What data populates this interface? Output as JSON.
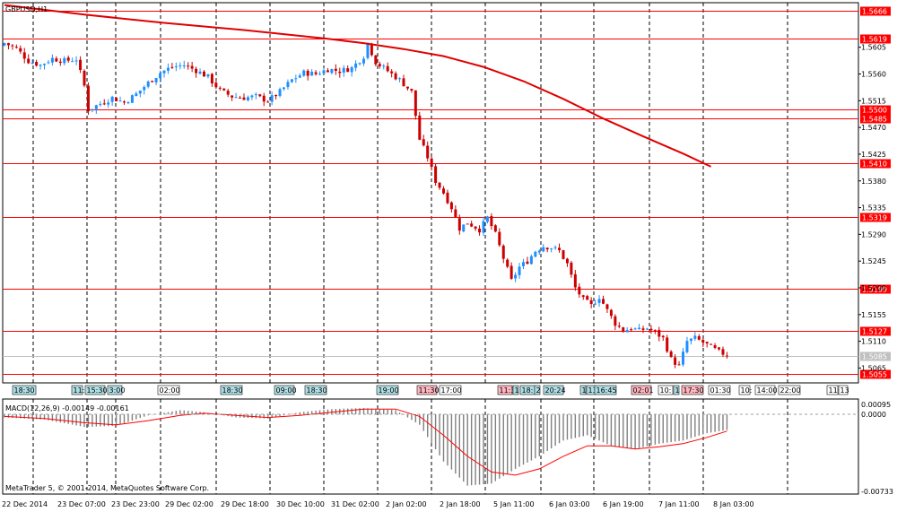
{
  "symbol_label": "GBPUSD,H1",
  "indicator_label": "MACD(12,26,9) -0.00149 -0.00161",
  "copyright": "MetaTrader 5, © 2001-2014, MetaQuotes Software Corp.",
  "colors": {
    "background": "#ffffff",
    "frame": "#000000",
    "bull": "#1e90ff",
    "bear": "#cc0000",
    "level_line": "#ff0000",
    "ma_line": "#e00000",
    "histogram": "#808080",
    "signal": "#ff0000",
    "current_price": "#c0c0c0",
    "event_tag_fill": "#b0e0e6",
    "event_tag_red": "#ffb6c1"
  },
  "chart_data": [
    {
      "type": "candlestick",
      "title": "GBPUSD,H1",
      "ylim": [
        1.504,
        1.568
      ],
      "y_ticks": [
        "1.5605",
        "1.5560",
        "1.5515",
        "1.5470",
        "1.5425",
        "1.5380",
        "1.5335",
        "1.5290",
        "1.5245",
        "1.5200",
        "1.5155",
        "1.5110",
        "1.5065"
      ],
      "x_tick_labels": [
        "22 Dec 2014",
        "23 Dec 07:00",
        "23 Dec 23:00",
        "29 Dec 02:00",
        "29 Dec 18:00",
        "30 Dec 10:00",
        "31 Dec 02:00",
        "2 Jan 02:00",
        "2 Jan 18:00",
        "5 Jan 11:00",
        "6 Jan 03:00",
        "6 Jan 19:00",
        "7 Jan 11:00",
        "8 Jan 03:00"
      ],
      "horizontal_levels": [
        {
          "label": "1.5666",
          "value": 1.5666
        },
        {
          "label": "1.5619",
          "value": 1.5619
        },
        {
          "label": "1.5500",
          "value": 1.55
        },
        {
          "label": "1.5485",
          "value": 1.5485
        },
        {
          "label": "1.5410",
          "value": 1.541
        },
        {
          "label": "1.5319",
          "value": 1.5319
        },
        {
          "label": "1.5199",
          "value": 1.5199
        },
        {
          "label": "1.5127",
          "value": 1.5127
        },
        {
          "label": "1.5055",
          "value": 1.5055
        }
      ],
      "current_price": {
        "label": "1.5085",
        "value": 1.5085
      },
      "moving_average": [
        [
          0,
          1.5676
        ],
        [
          20,
          1.566
        ],
        [
          40,
          1.5646
        ],
        [
          60,
          1.5634
        ],
        [
          80,
          1.562
        ],
        [
          90,
          1.5612
        ],
        [
          100,
          1.5602
        ],
        [
          110,
          1.559
        ],
        [
          120,
          1.5572
        ],
        [
          130,
          1.5548
        ],
        [
          140,
          1.5518
        ],
        [
          150,
          1.5485
        ],
        [
          160,
          1.5455
        ],
        [
          170,
          1.5426
        ],
        [
          177,
          1.5404
        ]
      ],
      "close_path": [
        [
          0,
          1.5612
        ],
        [
          3,
          1.5603
        ],
        [
          6,
          1.5582
        ],
        [
          9,
          1.5575
        ],
        [
          12,
          1.5586
        ],
        [
          15,
          1.5582
        ],
        [
          18,
          1.5585
        ],
        [
          20,
          1.554
        ],
        [
          21,
          1.55
        ],
        [
          24,
          1.551
        ],
        [
          27,
          1.552
        ],
        [
          30,
          1.5512
        ],
        [
          33,
          1.5526
        ],
        [
          36,
          1.5545
        ],
        [
          39,
          1.5562
        ],
        [
          42,
          1.5572
        ],
        [
          45,
          1.5575
        ],
        [
          48,
          1.5566
        ],
        [
          51,
          1.5555
        ],
        [
          54,
          1.5532
        ],
        [
          57,
          1.5522
        ],
        [
          60,
          1.552
        ],
        [
          63,
          1.5522
        ],
        [
          66,
          1.5515
        ],
        [
          69,
          1.553
        ],
        [
          72,
          1.555
        ],
        [
          75,
          1.5562
        ],
        [
          78,
          1.556
        ],
        [
          81,
          1.5568
        ],
        [
          84,
          1.5565
        ],
        [
          87,
          1.557
        ],
        [
          90,
          1.559
        ],
        [
          91,
          1.5612
        ],
        [
          93,
          1.558
        ],
        [
          96,
          1.5565
        ],
        [
          99,
          1.555
        ],
        [
          102,
          1.553
        ],
        [
          104,
          1.545
        ],
        [
          106,
          1.542
        ],
        [
          108,
          1.538
        ],
        [
          110,
          1.536
        ],
        [
          112,
          1.5335
        ],
        [
          114,
          1.53
        ],
        [
          116,
          1.531
        ],
        [
          119,
          1.5298
        ],
        [
          121,
          1.5318
        ],
        [
          123,
          1.529
        ],
        [
          125,
          1.525
        ],
        [
          127,
          1.5212
        ],
        [
          129,
          1.5235
        ],
        [
          131,
          1.5245
        ],
        [
          133,
          1.5262
        ],
        [
          135,
          1.527
        ],
        [
          137,
          1.5268
        ],
        [
          139,
          1.5262
        ],
        [
          141,
          1.524
        ],
        [
          143,
          1.52
        ],
        [
          145,
          1.518
        ],
        [
          147,
          1.517
        ],
        [
          149,
          1.5185
        ],
        [
          151,
          1.5162
        ],
        [
          153,
          1.514
        ],
        [
          155,
          1.5128
        ],
        [
          157,
          1.5132
        ],
        [
          159,
          1.5128
        ],
        [
          161,
          1.5132
        ],
        [
          163,
          1.5125
        ],
        [
          165,
          1.5115
        ],
        [
          167,
          1.508
        ],
        [
          169,
          1.5068
        ],
        [
          171,
          1.511
        ],
        [
          173,
          1.5115
        ],
        [
          175,
          1.5108
        ],
        [
          177,
          1.51
        ],
        [
          179,
          1.5092
        ],
        [
          181,
          1.5087
        ]
      ]
    },
    {
      "type": "bar",
      "title": "MACD(12,26,9) -0.00149 -0.00161",
      "ylim": [
        -0.0076,
        0.0012
      ],
      "y_ticks": [
        "0.00095",
        "0.0000",
        "-0.00733"
      ],
      "histogram": [
        [
          0,
          -0.0003
        ],
        [
          10,
          -0.0005
        ],
        [
          20,
          -0.0012
        ],
        [
          28,
          -0.0011
        ],
        [
          36,
          -0.0001
        ],
        [
          44,
          0.0004
        ],
        [
          50,
          0.0002
        ],
        [
          58,
          -0.0003
        ],
        [
          66,
          -0.0004
        ],
        [
          74,
          0.0002
        ],
        [
          82,
          0.0005
        ],
        [
          90,
          0.0006
        ],
        [
          98,
          0.0004
        ],
        [
          104,
          -0.001
        ],
        [
          110,
          -0.0045
        ],
        [
          116,
          -0.0068
        ],
        [
          122,
          -0.0066
        ],
        [
          128,
          -0.0052
        ],
        [
          134,
          -0.004
        ],
        [
          140,
          -0.0025
        ],
        [
          146,
          -0.002
        ],
        [
          152,
          -0.003
        ],
        [
          158,
          -0.0033
        ],
        [
          164,
          -0.0028
        ],
        [
          170,
          -0.0025
        ],
        [
          176,
          -0.0018
        ],
        [
          181,
          -0.0015
        ]
      ],
      "signal": [
        [
          0,
          -0.0002
        ],
        [
          10,
          -0.0004
        ],
        [
          20,
          -0.0008
        ],
        [
          28,
          -0.001
        ],
        [
          36,
          -0.0006
        ],
        [
          44,
          -0.0001
        ],
        [
          50,
          0.0001
        ],
        [
          58,
          -0.0001
        ],
        [
          66,
          -0.0003
        ],
        [
          74,
          -0.0001
        ],
        [
          82,
          0.0002
        ],
        [
          90,
          0.0005
        ],
        [
          98,
          0.0005
        ],
        [
          104,
          -0.0002
        ],
        [
          110,
          -0.002
        ],
        [
          116,
          -0.004
        ],
        [
          122,
          -0.0055
        ],
        [
          128,
          -0.0058
        ],
        [
          134,
          -0.0052
        ],
        [
          140,
          -0.004
        ],
        [
          146,
          -0.003
        ],
        [
          152,
          -0.003
        ],
        [
          158,
          -0.0033
        ],
        [
          164,
          -0.0031
        ],
        [
          170,
          -0.0028
        ],
        [
          176,
          -0.0022
        ],
        [
          181,
          -0.0016
        ]
      ]
    }
  ],
  "event_tags": [
    {
      "label": "18:30",
      "style": "blue"
    },
    {
      "label": "11:",
      "style": "blue"
    },
    {
      "label": "15:30",
      "style": "blue"
    },
    {
      "label": "3:00",
      "style": "blue"
    },
    {
      "label": "02:00",
      "style": "plain"
    },
    {
      "label": "18:30",
      "style": "blue"
    },
    {
      "label": "09:00",
      "style": "blue"
    },
    {
      "label": "18:30",
      "style": "blue"
    },
    {
      "label": "19:00",
      "style": "blue"
    },
    {
      "label": "11:30",
      "style": "red"
    },
    {
      "label": "17:00",
      "style": "plain"
    },
    {
      "label": "11:3",
      "style": "red"
    },
    {
      "label": "1",
      "style": "blue"
    },
    {
      "label": "18:",
      "style": "blue"
    },
    {
      "label": "2",
      "style": "blue"
    },
    {
      "label": "20:24",
      "style": "blue"
    },
    {
      "label": "1",
      "style": "blue"
    },
    {
      "label": "13",
      "style": "blue"
    },
    {
      "label": "16:45",
      "style": "blue"
    },
    {
      "label": "02:01",
      "style": "red"
    },
    {
      "label": "10:",
      "style": "plain"
    },
    {
      "label": "1",
      "style": "blue"
    },
    {
      "label": "17:30",
      "style": "red"
    },
    {
      "label": "01:30",
      "style": "plain"
    },
    {
      "label": "10:",
      "style": "plain"
    },
    {
      "label": "14:00",
      "style": "plain"
    },
    {
      "label": "22:00",
      "style": "plain"
    },
    {
      "label": "11:",
      "style": "plain"
    },
    {
      "label": "13",
      "style": "plain"
    }
  ]
}
